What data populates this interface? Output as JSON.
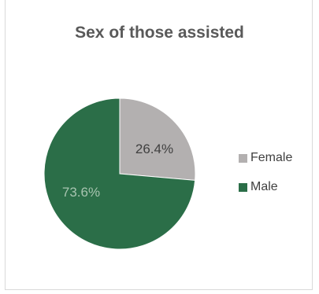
{
  "chart_data": {
    "type": "pie",
    "title": "Sex of those assisted",
    "slices": [
      {
        "name": "Female",
        "value": 26.4,
        "label": "26.4%",
        "color": "#b3b0b0",
        "label_color": "#404040"
      },
      {
        "name": "Male",
        "value": 73.6,
        "label": "73.6%",
        "color": "#2b6e48",
        "label_color": "#a8c4b0"
      }
    ],
    "legend_position": "right",
    "start_angle": "12 o'clock, clockwise"
  }
}
